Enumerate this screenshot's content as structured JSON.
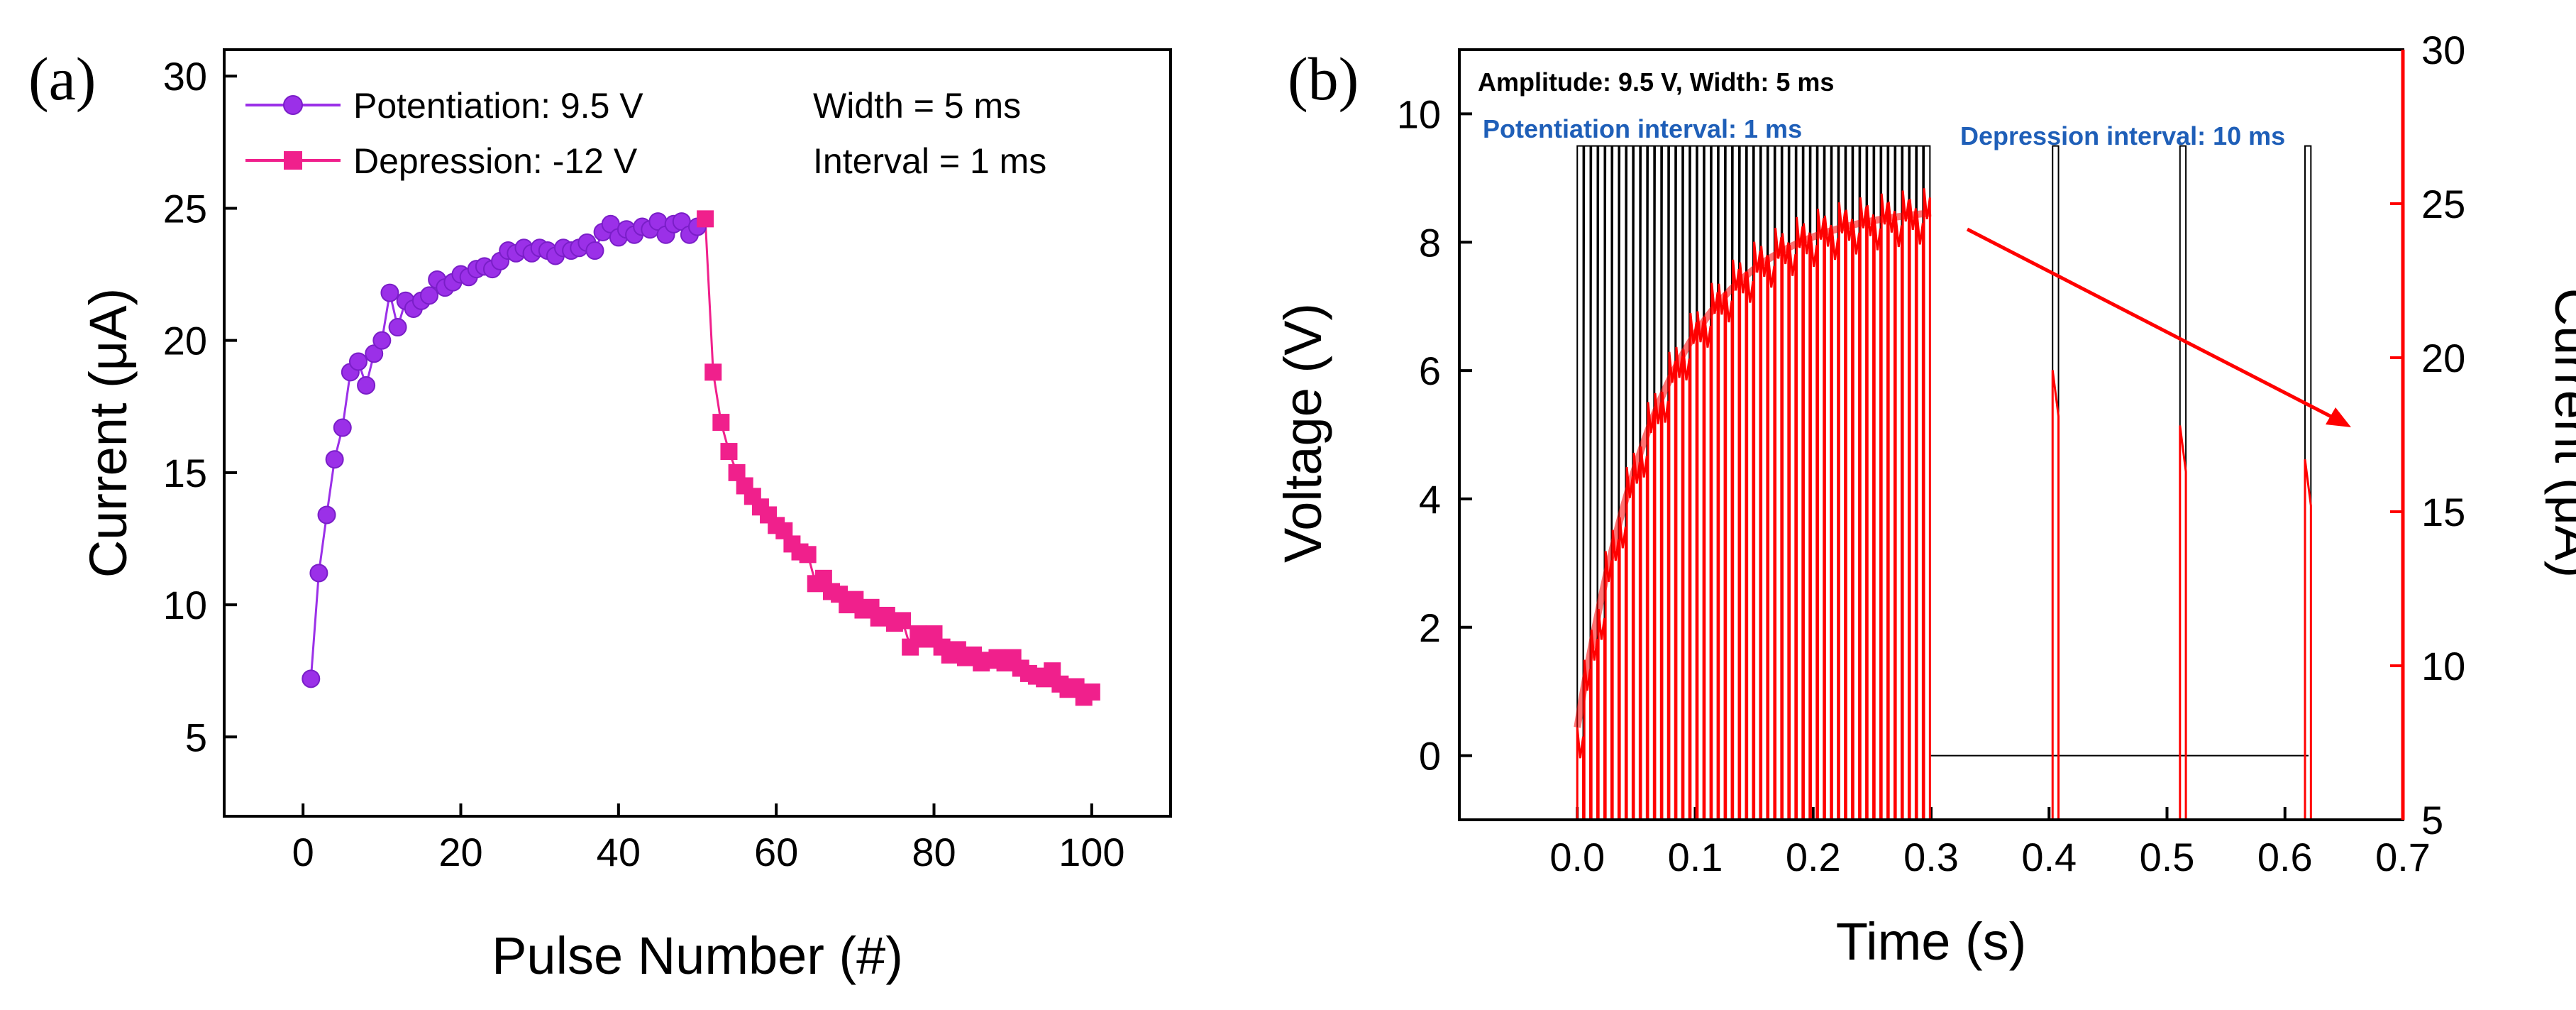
{
  "chart_data": [
    {
      "type": "scatter",
      "panel_label": "(a)",
      "xlabel": "Pulse Number (#)",
      "ylabel": "Current (μA)",
      "xlim": [
        -10,
        110
      ],
      "ylim": [
        2,
        31
      ],
      "xticks": [
        0,
        20,
        40,
        60,
        80,
        100
      ],
      "yticks": [
        5,
        10,
        15,
        20,
        25,
        30
      ],
      "annotations": [
        "Width = 5 ms",
        "Interval = 1 ms"
      ],
      "series": [
        {
          "name": "Potentiation: 9.5 V",
          "color": "#9b30e8",
          "marker": "circle",
          "x": [
            1,
            2,
            3,
            4,
            5,
            6,
            7,
            8,
            9,
            10,
            11,
            12,
            13,
            14,
            15,
            16,
            17,
            18,
            19,
            20,
            21,
            22,
            23,
            24,
            25,
            26,
            27,
            28,
            29,
            30,
            31,
            32,
            33,
            34,
            35,
            36,
            37,
            38,
            39,
            40,
            41,
            42,
            43,
            44,
            45,
            46,
            47,
            48,
            49,
            50
          ],
          "y": [
            7.2,
            11.2,
            13.4,
            15.5,
            16.7,
            18.8,
            19.2,
            18.3,
            19.5,
            20.0,
            21.8,
            20.5,
            21.5,
            21.2,
            21.5,
            21.7,
            22.3,
            22.0,
            22.2,
            22.5,
            22.4,
            22.7,
            22.8,
            22.7,
            23.0,
            23.4,
            23.3,
            23.5,
            23.3,
            23.5,
            23.4,
            23.2,
            23.5,
            23.4,
            23.5,
            23.7,
            23.4,
            24.1,
            24.4,
            23.9,
            24.2,
            24.0,
            24.3,
            24.2,
            24.5,
            24.0,
            24.4,
            24.5,
            24.0,
            24.3
          ]
        },
        {
          "name": "Depression: -12 V",
          "color": "#f0208c",
          "marker": "square",
          "x": [
            51,
            52,
            53,
            54,
            55,
            56,
            57,
            58,
            59,
            60,
            61,
            62,
            63,
            64,
            65,
            66,
            67,
            68,
            69,
            70,
            71,
            72,
            73,
            74,
            75,
            76,
            77,
            78,
            79,
            80,
            81,
            82,
            83,
            84,
            85,
            86,
            87,
            88,
            89,
            90,
            91,
            92,
            93,
            94,
            95,
            96,
            97,
            98,
            99,
            100
          ],
          "y": [
            24.6,
            18.8,
            16.9,
            15.8,
            15.0,
            14.5,
            14.1,
            13.7,
            13.4,
            13.0,
            12.8,
            12.3,
            12.0,
            11.9,
            10.8,
            11.0,
            10.5,
            10.4,
            10.0,
            10.2,
            9.8,
            9.9,
            9.5,
            9.6,
            9.3,
            9.4,
            8.4,
            8.9,
            8.7,
            8.9,
            8.4,
            8.1,
            8.3,
            8.0,
            8.1,
            7.8,
            7.9,
            8.0,
            7.8,
            8.0,
            7.6,
            7.4,
            7.3,
            7.2,
            7.5,
            7.0,
            6.8,
            6.9,
            6.5,
            6.7
          ]
        }
      ]
    },
    {
      "type": "line",
      "panel_label": "(b)",
      "xlabel": "Time (s)",
      "ylabel": "Voltage (V)",
      "ylabel_right": "Current (μA)",
      "xlim": [
        -0.1,
        0.7
      ],
      "ylim": [
        -1,
        11
      ],
      "ylim_right": [
        5,
        30
      ],
      "xticks": [
        0.0,
        0.1,
        0.2,
        0.3,
        0.4,
        0.5,
        0.6,
        0.7
      ],
      "yticks": [
        0,
        2,
        4,
        6,
        8,
        10
      ],
      "yticks_right": [
        5,
        10,
        15,
        20,
        25,
        30
      ],
      "annotations": [
        "Amplitude: 9.5 V, Width: 5 ms",
        "Potentiation interval: 1 ms",
        "Depression interval: 10 ms"
      ],
      "series": [
        {
          "name": "Voltage",
          "color": "#000000",
          "axis": "left",
          "pulse_amplitude": 9.5,
          "pulse_width_s": 0.005,
          "potentiation_train": {
            "start": 0.0,
            "end": 0.3,
            "count": 50
          },
          "depression_pulse_times": [
            0.403,
            0.511,
            0.617
          ]
        },
        {
          "name": "Current",
          "color": "#ff0000",
          "axis": "right",
          "potentiation_envelope": {
            "start_value": 8.5,
            "end_value": 25.2
          },
          "depression_peaks": [
            {
              "t": 0.403,
              "value": 19.6
            },
            {
              "t": 0.511,
              "value": 17.8
            },
            {
              "t": 0.617,
              "value": 16.7
            }
          ]
        }
      ]
    }
  ]
}
